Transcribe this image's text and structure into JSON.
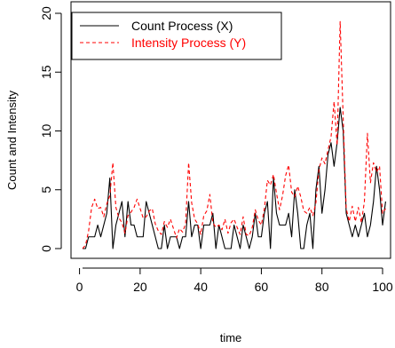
{
  "chart_data": {
    "type": "line",
    "title": "",
    "xlabel": "time",
    "ylabel": "Count and Intensity",
    "xlim": [
      1,
      100
    ],
    "ylim": [
      0,
      20
    ],
    "x_ticks": [
      "0",
      "20",
      "40",
      "60",
      "80",
      "100"
    ],
    "y_ticks": [
      "0",
      "5",
      "10",
      "15",
      "20"
    ],
    "grid": false,
    "legend_position": "top-left",
    "series": [
      {
        "name": "Count Process (X)",
        "color": "#000000",
        "dash": "solid",
        "values": [
          0,
          0,
          1,
          1,
          1,
          2,
          1,
          2,
          3,
          6,
          0,
          2,
          3,
          4,
          1,
          4,
          2,
          2,
          1,
          1,
          1,
          4,
          3,
          2,
          1,
          0,
          0,
          2,
          0,
          1,
          1,
          1,
          0,
          1,
          1,
          4,
          1,
          2,
          2,
          0,
          2,
          2,
          2,
          3,
          0,
          2,
          1,
          0,
          0,
          0,
          2,
          1,
          0,
          2,
          1,
          0,
          1,
          3,
          1,
          1,
          3,
          4,
          0,
          6,
          3,
          2,
          2,
          2,
          3,
          1,
          5,
          3,
          0,
          0,
          2,
          3,
          0,
          5,
          7,
          3,
          5,
          8,
          9,
          7,
          9,
          12,
          10,
          3,
          2,
          1,
          2,
          1,
          2,
          3,
          1,
          2,
          4,
          7,
          5,
          2,
          4
        ]
      },
      {
        "name": "Intensity Process (Y)",
        "color": "#ff0000",
        "dash": "dashed",
        "values": [
          0,
          0.3,
          1.5,
          3.5,
          4.2,
          3.4,
          3.5,
          2.7,
          3.8,
          4.5,
          7.3,
          3.5,
          2.6,
          2.2,
          1.3,
          2.8,
          3.1,
          3.5,
          4.2,
          3.4,
          2.6,
          2.7,
          3.2,
          3.4,
          2.1,
          1.5,
          1.2,
          2.3,
          1.8,
          2.5,
          1.7,
          0.9,
          1.7,
          1.4,
          2.1,
          7.3,
          3.9,
          2.5,
          2.1,
          1.2,
          2.8,
          3.2,
          4.6,
          2.2,
          1.8,
          2.0,
          1.6,
          2.5,
          1.3,
          2.2,
          2.5,
          1.8,
          1.2,
          2.7,
          1.2,
          1.1,
          1.8,
          3.3,
          2.4,
          2.0,
          3.4,
          5.8,
          5.4,
          6.3,
          4.7,
          3.3,
          4.5,
          6.2,
          7.1,
          4.8,
          4.4,
          5.3,
          4.4,
          3.2,
          3.0,
          3.5,
          2.8,
          3.9,
          6.7,
          7.7,
          7.2,
          8.4,
          9.5,
          12.5,
          8.8,
          19.3,
          11.1,
          3.4,
          2.3,
          3.6,
          2.3,
          3.5,
          2.2,
          4.0,
          9.8,
          5.6,
          7.3,
          6.5,
          7.0,
          3.0,
          3.4
        ]
      }
    ]
  }
}
